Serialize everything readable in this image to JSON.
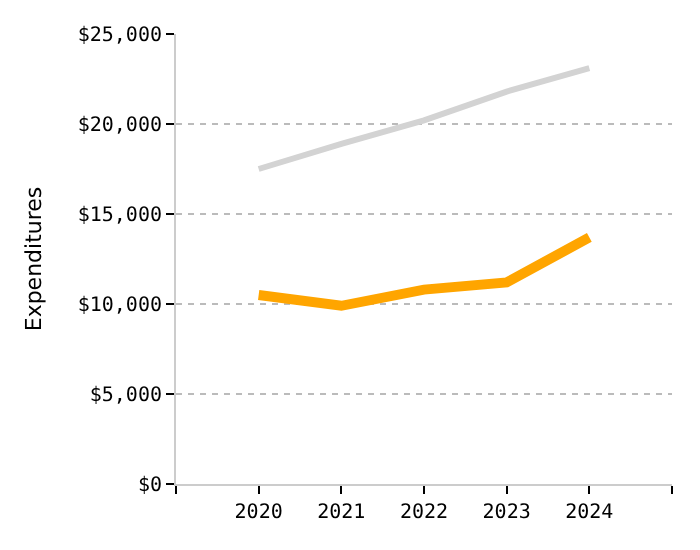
{
  "chart_data": {
    "type": "line",
    "ylabel": "Expenditures",
    "x": [
      2020,
      2021,
      2022,
      2023,
      2024
    ],
    "series": [
      {
        "color": "#d3d3d3",
        "values": [
          17500,
          18900,
          20200,
          21800,
          23100
        ]
      },
      {
        "color": "#ffa500",
        "values": [
          10500,
          9900,
          10800,
          11200,
          13700
        ]
      }
    ],
    "xlim": [
      2019,
      2025
    ],
    "xticks": [
      {
        "value": 2019,
        "label": null
      },
      2020,
      2021,
      2022,
      2023,
      2024,
      {
        "value": 2025,
        "label": null
      }
    ],
    "ylim": [
      0,
      25000
    ],
    "yticks": [
      {
        "value": 0,
        "label": "$0"
      },
      {
        "value": 5000,
        "label": "$5,000"
      },
      {
        "value": 10000,
        "label": "$10,000"
      },
      {
        "value": 15000,
        "label": "$15,000"
      },
      {
        "value": 20000,
        "label": "$20,000"
      },
      {
        "value": 25000,
        "label": "$25,000"
      }
    ],
    "grid": "y",
    "marker": "none",
    "line_style": "solid"
  }
}
